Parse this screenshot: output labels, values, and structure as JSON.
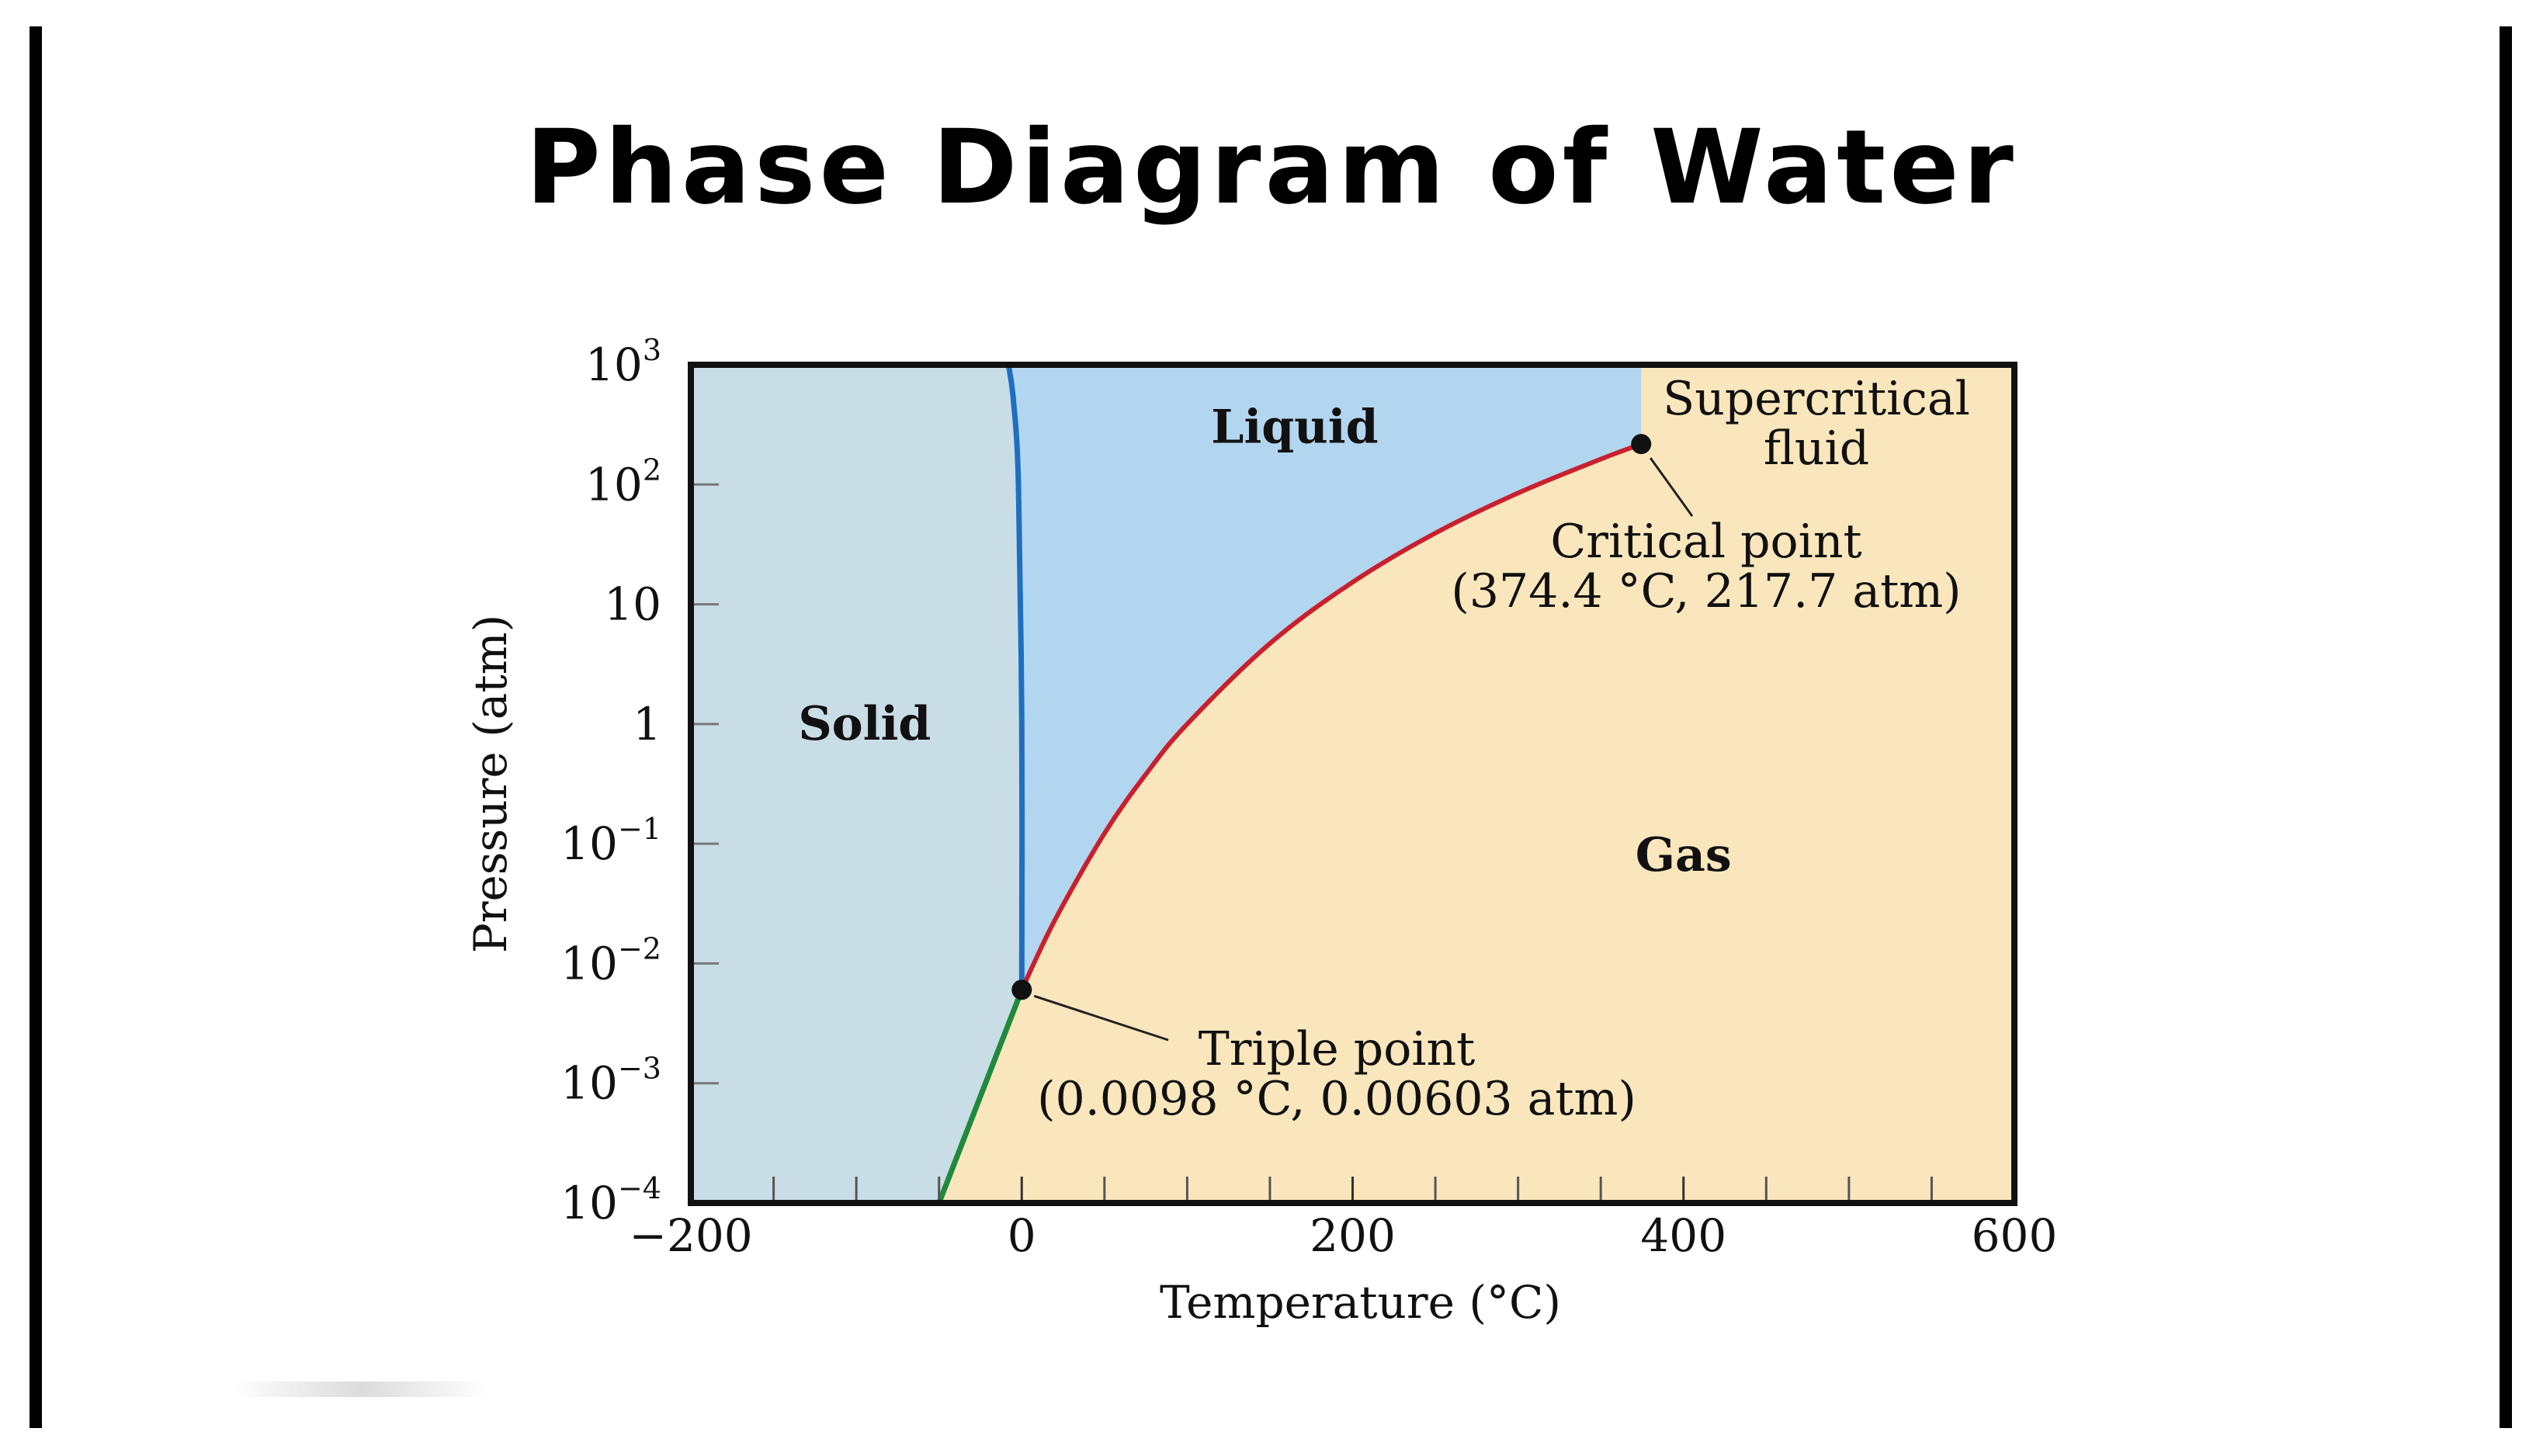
{
  "page": {
    "title": "Phase Diagram of Water"
  },
  "chart_data": {
    "type": "line",
    "title": "Phase Diagram of Water",
    "xlabel": "Temperature (°C)",
    "ylabel": "Pressure (atm)",
    "xlim": [
      -200,
      600
    ],
    "ylim": [
      0.0001,
      1000
    ],
    "y_scale": "log",
    "x_ticks": [
      {
        "value": -200,
        "label": "−200"
      },
      {
        "value": 0,
        "label": "0"
      },
      {
        "value": 200,
        "label": "200"
      },
      {
        "value": 400,
        "label": "400"
      },
      {
        "value": 600,
        "label": "600"
      }
    ],
    "x_minor_ticks": [
      -150,
      -100,
      -50,
      50,
      100,
      150,
      250,
      300,
      350,
      450,
      500,
      550
    ],
    "y_ticks": [
      {
        "value": 1000,
        "base": "10",
        "exp": "3"
      },
      {
        "value": 100,
        "base": "10",
        "exp": "2"
      },
      {
        "value": 10,
        "base": "10",
        "exp": ""
      },
      {
        "value": 1,
        "base": "1",
        "exp": ""
      },
      {
        "value": 0.1,
        "base": "10",
        "exp": "−1"
      },
      {
        "value": 0.01,
        "base": "10",
        "exp": "−2"
      },
      {
        "value": 0.001,
        "base": "10",
        "exp": "−3"
      },
      {
        "value": 0.0001,
        "base": "10",
        "exp": "−4"
      }
    ],
    "regions": [
      {
        "label": "Solid",
        "x": -95,
        "y": 1
      },
      {
        "label": "Liquid",
        "x": 165,
        "y": 300
      },
      {
        "label": "Gas",
        "x": 400,
        "y": 0.08
      }
    ],
    "colors": {
      "solid_region": "#c9dde6",
      "liquid_region": "#b3d6f0",
      "gas_region": "#f9e6bc",
      "melting_curve": "#1f6fc0",
      "vaporization_curve": "#c8202e",
      "sublimation_curve": "#1f8a3c",
      "plot_border": "#111111"
    },
    "series": [
      {
        "color": "#1f6fc0",
        "x": [
          0.0098,
          0.0,
          -2,
          -5,
          -8
        ],
        "y": [
          0.00603,
          1,
          100,
          500,
          1000
        ]
      },
      {
        "color": "#c8202e",
        "x": [
          0.0098,
          20,
          50,
          75,
          100,
          150,
          200,
          250,
          300,
          350,
          374.4
        ],
        "y": [
          0.00603,
          0.023,
          0.122,
          0.38,
          1,
          4.7,
          15.3,
          39.3,
          84.8,
          163,
          217.7
        ]
      },
      {
        "color": "#1f8a3c",
        "x": [
          0.0098,
          -50
        ],
        "y": [
          0.00603,
          0.0001
        ]
      }
    ],
    "points": [
      {
        "name": "Triple point",
        "x": 0.0098,
        "y": 0.00603,
        "label_line1": "Triple point",
        "label_line2": "(0.0098 °C, 0.00603 atm)"
      },
      {
        "name": "Critical point",
        "x": 374.4,
        "y": 217.7,
        "label_line1": "Critical point",
        "label_line2": "(374.4 °C, 217.7 atm)"
      }
    ],
    "annotations": {
      "supercritical_line1": "Supercritical",
      "supercritical_line2": "fluid"
    },
    "grid": false,
    "legend": "none"
  }
}
